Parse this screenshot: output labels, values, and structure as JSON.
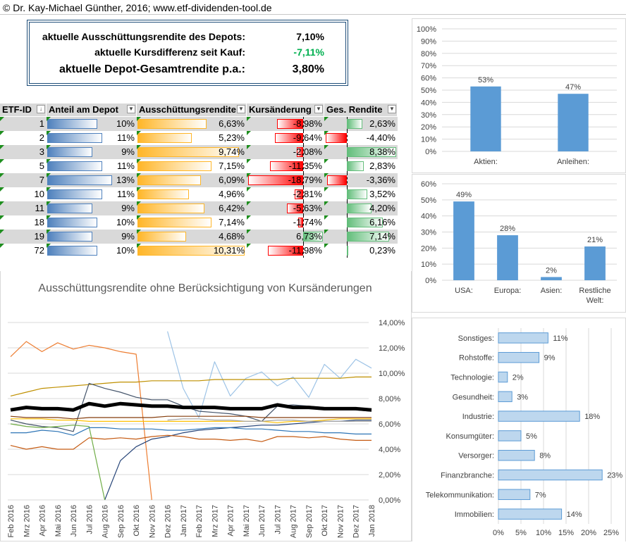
{
  "header": {
    "title": "© Dr. Kay-Michael Günther, 2016; www.etf-dividenden-tool.de"
  },
  "summary": {
    "rows": [
      {
        "label": "aktuelle Ausschüttungsrendite des Depots:",
        "value": "7,10%",
        "color": "#000000"
      },
      {
        "label": "aktuelle Kursdifferenz seit Kauf:",
        "value": "-7,11%",
        "color": "#00b050"
      },
      {
        "label": "aktuelle Depot-Gesamtrendite p.a.:",
        "value": "3,80%",
        "color": "#000000"
      }
    ]
  },
  "table": {
    "headers": [
      "ETF-ID",
      "Anteil am Depot",
      "Ausschüttungsrendite",
      "Kursänderung",
      "Ges. Rendite"
    ],
    "rows": [
      {
        "id": "1",
        "anteil": "10%",
        "anteil_v": 10,
        "ausschuettung": "6,63%",
        "aus_v": 6.63,
        "kurs": "-8,98%",
        "kurs_v": -8.98,
        "ges": "2,63%",
        "ges_v": 2.63
      },
      {
        "id": "2",
        "anteil": "11%",
        "anteil_v": 11,
        "ausschuettung": "5,23%",
        "aus_v": 5.23,
        "kurs": "-9,64%",
        "kurs_v": -9.64,
        "ges": "-4,40%",
        "ges_v": -4.4
      },
      {
        "id": "3",
        "anteil": "9%",
        "anteil_v": 9,
        "ausschuettung": "9,74%",
        "aus_v": 9.74,
        "kurs": "-2,08%",
        "kurs_v": -2.08,
        "ges": "8,38%",
        "ges_v": 8.38
      },
      {
        "id": "5",
        "anteil": "11%",
        "anteil_v": 11,
        "ausschuettung": "7,15%",
        "aus_v": 7.15,
        "kurs": "-11,35%",
        "kurs_v": -11.35,
        "ges": "2,83%",
        "ges_v": 2.83
      },
      {
        "id": "7",
        "anteil": "13%",
        "anteil_v": 13,
        "ausschuettung": "6,09%",
        "aus_v": 6.09,
        "kurs": "-18,79%",
        "kurs_v": -18.79,
        "ges": "-3,36%",
        "ges_v": -3.36
      },
      {
        "id": "10",
        "anteil": "11%",
        "anteil_v": 11,
        "ausschuettung": "4,96%",
        "aus_v": 4.96,
        "kurs": "-2,81%",
        "kurs_v": -2.81,
        "ges": "3,52%",
        "ges_v": 3.52
      },
      {
        "id": "11",
        "anteil": "9%",
        "anteil_v": 9,
        "ausschuettung": "6,42%",
        "aus_v": 6.42,
        "kurs": "-5,63%",
        "kurs_v": -5.63,
        "ges": "4,20%",
        "ges_v": 4.2
      },
      {
        "id": "18",
        "anteil": "10%",
        "anteil_v": 10,
        "ausschuettung": "7,14%",
        "aus_v": 7.14,
        "kurs": "-1,74%",
        "kurs_v": -1.74,
        "ges": "6,16%",
        "ges_v": 6.16
      },
      {
        "id": "19",
        "anteil": "9%",
        "anteil_v": 9,
        "ausschuettung": "4,68%",
        "aus_v": 4.68,
        "kurs": "6,73%",
        "kurs_v": 6.73,
        "ges": "7,14%",
        "ges_v": 7.14
      },
      {
        "id": "72",
        "anteil": "10%",
        "anteil_v": 10,
        "ausschuettung": "10,31%",
        "aus_v": 10.31,
        "kurs": "-11,98%",
        "kurs_v": -11.98,
        "ges": "0,23%",
        "ges_v": 0.23
      }
    ]
  },
  "chart_data": [
    {
      "type": "bar",
      "categories": [
        "Aktien:",
        "Anleihen:"
      ],
      "values": [
        53,
        47
      ],
      "data_labels": [
        "53%",
        "47%"
      ],
      "ylim": [
        0,
        100
      ],
      "yticks": [
        "0%",
        "10%",
        "20%",
        "30%",
        "40%",
        "50%",
        "60%",
        "70%",
        "80%",
        "90%",
        "100%"
      ],
      "color": "#5b9bd5"
    },
    {
      "type": "bar",
      "categories": [
        "USA:",
        "Europa:",
        "Asien:",
        "Restliche Welt:"
      ],
      "values": [
        49,
        28,
        2,
        21
      ],
      "data_labels": [
        "49%",
        "28%",
        "2%",
        "21%"
      ],
      "ylim": [
        0,
        60
      ],
      "yticks": [
        "0%",
        "10%",
        "20%",
        "30%",
        "40%",
        "50%",
        "60%"
      ],
      "color": "#5b9bd5"
    },
    {
      "type": "line",
      "title": "Ausschüttungsrendite ohne Berücksichtigung von Kursänderungen",
      "x": [
        "Feb 2016",
        "Mrz 2016",
        "Apr 2016",
        "Mai 2016",
        "Jun 2016",
        "Jul 2016",
        "Aug 2016",
        "Sep 2016",
        "Okt 2016",
        "Nov 2016",
        "Dez 2016",
        "Jan 2017",
        "Feb 2017",
        "Mrz 2017",
        "Apr 2017",
        "Mai 2017",
        "Jun 2017",
        "Jul 2017",
        "Aug 2017",
        "Sep 2017",
        "Okt 2017",
        "Nov 2017",
        "Dez 2017",
        "Jan 2018"
      ],
      "ylim": [
        0,
        14
      ],
      "yticks": [
        "0,00%",
        "2,00%",
        "4,00%",
        "6,00%",
        "8,00%",
        "10,00%",
        "12,00%",
        "14,00%"
      ],
      "series": [
        {
          "color": "#ed7d31",
          "width": 1.2,
          "values": [
            11.3,
            12.5,
            11.7,
            12.4,
            11.9,
            12.2,
            12.0,
            11.7,
            11.5,
            0.0,
            null,
            null,
            null,
            null,
            null,
            null,
            null,
            null,
            null,
            null,
            null,
            null,
            null,
            null
          ]
        },
        {
          "color": "#9dc3e6",
          "width": 1.2,
          "values": [
            null,
            null,
            null,
            null,
            null,
            null,
            null,
            null,
            null,
            null,
            13.3,
            8.8,
            6.5,
            10.9,
            8.2,
            9.6,
            10.1,
            9.0,
            9.7,
            8.1,
            10.7,
            9.6,
            11.1,
            10.4
          ]
        },
        {
          "color": "#bf9000",
          "width": 1.2,
          "values": [
            8.2,
            8.5,
            8.8,
            8.9,
            9.0,
            9.1,
            9.2,
            9.3,
            9.3,
            9.4,
            9.4,
            9.4,
            9.4,
            9.5,
            9.5,
            9.5,
            9.5,
            9.5,
            9.6,
            9.6,
            9.6,
            9.6,
            9.7,
            9.7
          ]
        },
        {
          "color": "#264478",
          "width": 1.2,
          "values": [
            null,
            null,
            null,
            null,
            null,
            null,
            0.0,
            3.1,
            4.2,
            4.8,
            5.0,
            5.3,
            5.5,
            5.6,
            5.7,
            5.8,
            5.9,
            5.9,
            6.0,
            6.1,
            6.2,
            6.2,
            6.3,
            6.3
          ]
        },
        {
          "color": "#44546a",
          "width": 1.2,
          "values": [
            6.3,
            6.0,
            5.8,
            5.7,
            5.4,
            9.2,
            8.8,
            8.5,
            8.1,
            7.9,
            7.9,
            7.4,
            7.0,
            6.9,
            6.8,
            6.6,
            6.2,
            7.4,
            7.5,
            7.4,
            7.3,
            7.2,
            7.1,
            7.0
          ]
        },
        {
          "color": "#000000",
          "width": 5,
          "values": [
            7.1,
            7.3,
            7.2,
            7.2,
            7.1,
            7.6,
            7.4,
            7.6,
            7.5,
            7.4,
            7.4,
            7.3,
            7.3,
            7.3,
            7.2,
            7.2,
            7.2,
            7.5,
            7.3,
            7.3,
            7.2,
            7.2,
            7.2,
            7.1
          ]
        },
        {
          "color": "#c55a11",
          "width": 1.2,
          "values": [
            4.3,
            4.0,
            4.2,
            4.0,
            4.0,
            4.9,
            4.8,
            4.9,
            4.8,
            5.0,
            5.1,
            5.0,
            4.8,
            4.8,
            4.7,
            4.8,
            4.6,
            5.0,
            5.0,
            4.9,
            5.0,
            4.8,
            4.7,
            4.7
          ]
        },
        {
          "color": "#ffc000",
          "width": 1.2,
          "values": [
            6.4,
            6.4,
            6.4,
            6.3,
            6.3,
            6.2,
            6.2,
            6.2,
            6.2,
            6.2,
            6.2,
            6.2,
            6.2,
            6.2,
            6.2,
            6.2,
            6.2,
            6.1,
            6.2,
            6.2,
            6.3,
            6.4,
            6.4,
            6.4
          ]
        },
        {
          "color": "#70ad47",
          "width": 1.2,
          "values": [
            6.0,
            5.8,
            5.7,
            5.8,
            5.9,
            5.8,
            0.0,
            null,
            null,
            null,
            null,
            null,
            null,
            null,
            null,
            null,
            null,
            null,
            null,
            null,
            null,
            null,
            null,
            null
          ]
        },
        {
          "color": "#2e75b6",
          "width": 1.2,
          "values": [
            5.3,
            5.3,
            5.5,
            5.4,
            5.1,
            5.7,
            5.7,
            5.6,
            5.6,
            5.6,
            5.5,
            5.5,
            5.6,
            5.7,
            5.7,
            5.6,
            5.6,
            5.5,
            5.4,
            5.4,
            5.3,
            5.3,
            5.2,
            5.2
          ]
        },
        {
          "color": "#843c0c",
          "width": 1.2,
          "values": [
            6.6,
            6.5,
            6.5,
            6.5,
            6.4,
            6.5,
            6.5,
            6.5,
            6.5,
            6.5,
            6.6,
            6.6,
            6.6,
            6.6,
            6.6,
            6.6,
            6.5,
            6.5,
            6.5,
            6.5,
            6.5,
            6.5,
            6.5,
            6.5
          ]
        },
        {
          "color": "#a5a5a5",
          "width": 1.2,
          "values": [
            null,
            null,
            null,
            null,
            null,
            null,
            null,
            null,
            null,
            null,
            6.3,
            6.4,
            6.4,
            6.3,
            6.3,
            6.2,
            6.2,
            6.3,
            6.3,
            6.2,
            6.2,
            6.2,
            6.2,
            6.2
          ]
        }
      ]
    },
    {
      "type": "bar",
      "orientation": "horizontal",
      "categories": [
        "Sonstiges:",
        "Rohstoffe:",
        "Technologie:",
        "Gesundheit:",
        "Industrie:",
        "Konsumgüter:",
        "Versorger:",
        "Finanzbranche:",
        "Telekommunikation:",
        "Immobilien:"
      ],
      "values": [
        11,
        9,
        2,
        3,
        18,
        5,
        8,
        23,
        7,
        14
      ],
      "data_labels": [
        "11%",
        "9%",
        "2%",
        "3%",
        "18%",
        "5%",
        "8%",
        "23%",
        "7%",
        "14%"
      ],
      "xlim": [
        0,
        25
      ],
      "xticks": [
        "0%",
        "5%",
        "10%",
        "15%",
        "20%",
        "25%"
      ],
      "color": "#5b9bd5"
    }
  ]
}
